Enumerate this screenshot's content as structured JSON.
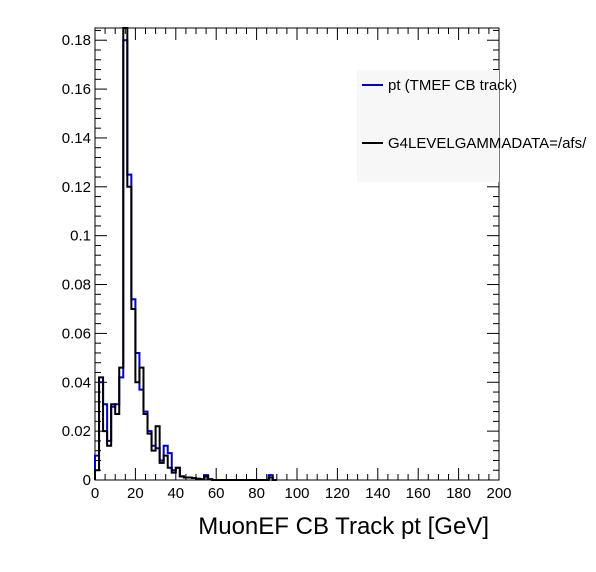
{
  "chart_data": {
    "type": "line",
    "title": "",
    "xlabel": "MuonEF CB Track pt [GeV]",
    "ylabel": "",
    "xlim": [
      0,
      200
    ],
    "ylim": [
      0,
      0.185
    ],
    "x_ticks": [
      "0",
      "20",
      "40",
      "60",
      "80",
      "100",
      "120",
      "140",
      "160",
      "180",
      "200"
    ],
    "y_ticks": [
      "0",
      "0.02",
      "0.04",
      "0.06",
      "0.08",
      "0.1",
      "0.12",
      "0.14",
      "0.16",
      "0.18"
    ],
    "bin_edges": [
      0,
      2,
      4,
      6,
      8,
      10,
      12,
      14,
      16,
      18,
      20,
      22,
      24,
      26,
      28,
      30,
      32,
      34,
      36,
      38,
      40,
      42,
      44,
      46,
      48,
      50,
      52,
      54,
      56,
      58,
      60,
      62,
      64,
      66,
      68,
      70,
      72,
      74,
      76,
      78,
      80,
      82,
      84,
      86,
      88,
      90
    ],
    "series": [
      {
        "name": "pt (TMEF CB track)",
        "color": "#0000cc",
        "values": [
          0.01,
          0.04,
          0.031,
          0.016,
          0.03,
          0.031,
          0.042,
          0.18,
          0.125,
          0.074,
          0.052,
          0.037,
          0.028,
          0.02,
          0.014,
          0.013,
          0.008,
          0.014,
          0.011,
          0.004,
          0.005,
          0.0015,
          0.001,
          0.001,
          0.0008,
          0.0005,
          0.0003,
          0.002,
          0.0003,
          0,
          0,
          0,
          0,
          0,
          0,
          0,
          0,
          0,
          0,
          0,
          0,
          0,
          0,
          0.002,
          0
        ]
      },
      {
        "name": "G4LEVELGAMMADATA=/afs/",
        "color": "#000000",
        "values": [
          0.004,
          0.042,
          0.02,
          0.014,
          0.031,
          0.027,
          0.046,
          0.185,
          0.12,
          0.07,
          0.04,
          0.046,
          0.027,
          0.019,
          0.012,
          0.022,
          0.007,
          0.01,
          0.005,
          0.003,
          0.005,
          0.0015,
          0.001,
          0.001,
          0.0008,
          0.0005,
          0.0003,
          0.0015,
          0.0003,
          0,
          0,
          0,
          0,
          0,
          0,
          0,
          0,
          0,
          0,
          0,
          0,
          0,
          0,
          0.001,
          0
        ]
      }
    ],
    "legend_position": "top-right"
  }
}
